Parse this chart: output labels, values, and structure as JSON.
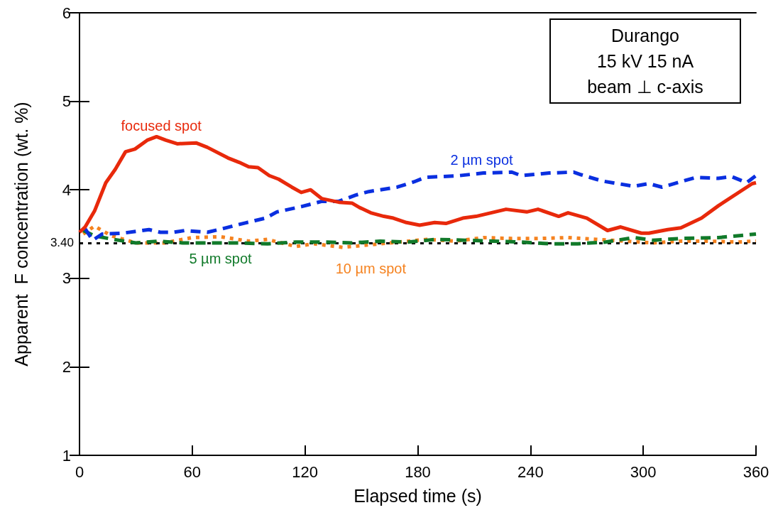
{
  "chart_data": {
    "type": "line",
    "xlabel": "Elapsed time (s)",
    "ylabel": "Apparent  F concentration (wt. %)",
    "xlim": [
      0,
      360
    ],
    "xticks": [
      0,
      60,
      120,
      180,
      240,
      300,
      360
    ],
    "ylim": [
      1,
      6
    ],
    "yticks": [
      1,
      2,
      3,
      4,
      5,
      6
    ],
    "grid": false,
    "legend": false,
    "marker": "none",
    "annotations": [
      "Durango",
      "15 kV 15 nA",
      "beam ⊥ c-axis"
    ],
    "ref_lines": [
      {
        "axis": "y",
        "value": 3.4,
        "label": "3.40",
        "color": "#000000",
        "line_style": "dotted"
      }
    ],
    "series": [
      {
        "name": "focused spot",
        "color": "#e8290b",
        "line_style": "solid",
        "x": [
          0,
          3,
          8,
          14,
          19,
          24.5,
          29.5,
          36,
          41,
          46,
          52,
          62,
          68,
          79,
          85,
          90,
          95,
          101,
          106,
          113,
          118,
          123,
          129,
          138,
          145,
          149,
          155,
          162,
          167,
          174,
          181,
          189,
          195,
          204,
          211,
          227,
          238,
          244,
          255,
          260,
          270,
          281,
          288,
          299,
          303,
          313,
          320,
          331,
          340,
          358,
          360
        ],
        "values": [
          3.52,
          3.58,
          3.76,
          4.08,
          4.23,
          4.43,
          4.46,
          4.56,
          4.6,
          4.56,
          4.52,
          4.53,
          4.48,
          4.36,
          4.31,
          4.26,
          4.25,
          4.16,
          4.12,
          4.03,
          3.97,
          4.0,
          3.9,
          3.86,
          3.85,
          3.8,
          3.74,
          3.7,
          3.68,
          3.63,
          3.6,
          3.63,
          3.62,
          3.68,
          3.7,
          3.78,
          3.75,
          3.78,
          3.7,
          3.74,
          3.68,
          3.54,
          3.58,
          3.51,
          3.51,
          3.55,
          3.57,
          3.68,
          3.82,
          4.07,
          4.08
        ]
      },
      {
        "name": "2 µm spot",
        "color": "#0a2fe0",
        "line_style": "dashed",
        "x": [
          3,
          7,
          12,
          23,
          37,
          43,
          50,
          56,
          68,
          76,
          89,
          99,
          105,
          118,
          129,
          138,
          147,
          154,
          169,
          178,
          184,
          202,
          215,
          230,
          235,
          250,
          263,
          267,
          278,
          295,
          303,
          310,
          328,
          340,
          347,
          355,
          360
        ],
        "values": [
          3.56,
          3.43,
          3.5,
          3.51,
          3.55,
          3.52,
          3.52,
          3.54,
          3.52,
          3.56,
          3.63,
          3.68,
          3.75,
          3.81,
          3.87,
          3.87,
          3.94,
          3.98,
          4.03,
          4.09,
          4.14,
          4.16,
          4.19,
          4.2,
          4.16,
          4.19,
          4.2,
          4.17,
          4.1,
          4.04,
          4.07,
          4.03,
          4.14,
          4.13,
          4.15,
          4.08,
          4.16
        ]
      },
      {
        "name": "5 µm spot",
        "color": "#117a2a",
        "line_style": "dashed",
        "x": [
          2,
          8,
          18,
          30,
          42,
          55,
          70,
          85,
          100,
          115,
          130,
          145,
          160,
          175,
          190,
          205,
          220,
          235,
          250,
          265,
          280,
          295,
          305,
          320,
          340,
          360
        ],
        "values": [
          3.54,
          3.48,
          3.44,
          3.4,
          3.42,
          3.4,
          3.4,
          3.4,
          3.39,
          3.41,
          3.41,
          3.4,
          3.42,
          3.41,
          3.44,
          3.43,
          3.42,
          3.41,
          3.39,
          3.39,
          3.41,
          3.46,
          3.43,
          3.45,
          3.46,
          3.5
        ]
      },
      {
        "name": "10 µm spot",
        "color": "#f5821f",
        "line_style": "dotted",
        "x": [
          2,
          8,
          17,
          30,
          45,
          60,
          75,
          90,
          100,
          115,
          125,
          140,
          155,
          170,
          185,
          200,
          215,
          230,
          245,
          260,
          275,
          290,
          305,
          320,
          335,
          350,
          360
        ],
        "values": [
          3.5,
          3.59,
          3.48,
          3.4,
          3.4,
          3.46,
          3.47,
          3.42,
          3.44,
          3.36,
          3.39,
          3.35,
          3.38,
          3.41,
          3.44,
          3.42,
          3.46,
          3.45,
          3.45,
          3.46,
          3.44,
          3.42,
          3.4,
          3.42,
          3.42,
          3.41,
          3.42
        ]
      }
    ]
  }
}
